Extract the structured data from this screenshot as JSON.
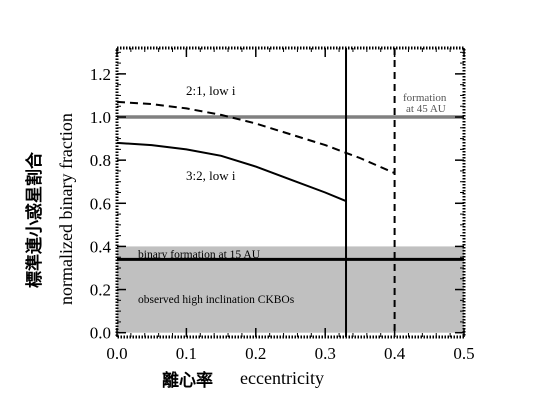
{
  "chart_data": {
    "type": "line",
    "xlabel_cjk": "離心率",
    "xlabel": "eccentricity",
    "ylabel_cjk": "標準連小惑星割合",
    "ylabel": "normalized binary fraction",
    "xlim": [
      0.0,
      0.5
    ],
    "ylim": [
      -0.02,
      1.32
    ],
    "xticks": [
      0.0,
      0.1,
      0.2,
      0.3,
      0.4,
      0.5
    ],
    "xtick_labels": [
      "0.0",
      "0.1",
      "0.2",
      "0.3",
      "0.4",
      "0.5"
    ],
    "yticks": [
      0.0,
      0.2,
      0.4,
      0.6,
      0.8,
      1.0,
      1.2
    ],
    "ytick_labels": [
      "0.0",
      "0.2",
      "0.4",
      "0.6",
      "0.8",
      "1.0",
      "1.2"
    ],
    "grid": false,
    "legend": "none",
    "series": [
      {
        "name": "2:1, low i",
        "style": "dashed",
        "color": "#000000",
        "x": [
          0.0,
          0.05,
          0.1,
          0.15,
          0.2,
          0.25,
          0.3,
          0.35,
          0.4
        ],
        "y": [
          1.07,
          1.06,
          1.04,
          1.01,
          0.97,
          0.92,
          0.87,
          0.81,
          0.74
        ]
      },
      {
        "name": "3:2, low i",
        "style": "solid",
        "color": "#000000",
        "x": [
          0.0,
          0.05,
          0.1,
          0.15,
          0.2,
          0.25,
          0.3,
          0.33
        ],
        "y": [
          0.88,
          0.87,
          0.85,
          0.82,
          0.77,
          0.71,
          0.65,
          0.61
        ]
      }
    ],
    "vlines": [
      {
        "x": 0.33,
        "style": "solid",
        "color": "#000000"
      },
      {
        "x": 0.4,
        "style": "dashed",
        "color": "#000000"
      }
    ],
    "hlines": [
      {
        "y": 1.0,
        "label": "formation at 45 AU",
        "color": "#808080"
      },
      {
        "y": 0.34,
        "label": "binary formation at 15 AU",
        "color": "#000000"
      }
    ],
    "band": {
      "y0": 0.0,
      "y1": 0.4,
      "label": "observed high inclination CKBOs",
      "color": "#c0c0c0"
    },
    "annotations": [
      {
        "text": "2:1, low i",
        "x": 0.1,
        "y": 1.12
      },
      {
        "text": "3:2, low i",
        "x": 0.1,
        "y": 0.72
      },
      {
        "text": "formation",
        "x": 0.452,
        "y": 1.07
      },
      {
        "text": "at 45 AU",
        "x": 0.452,
        "y": 1.03
      }
    ]
  }
}
